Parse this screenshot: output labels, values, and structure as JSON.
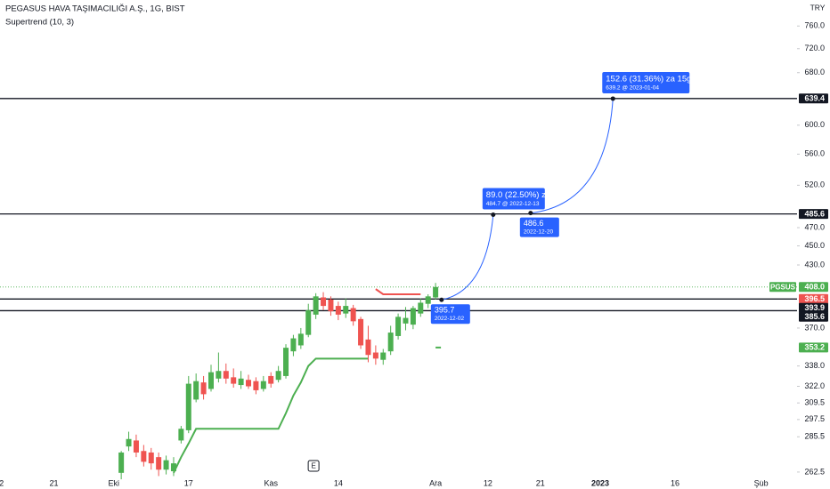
{
  "chart_data": {
    "type": "candlestick",
    "title": "PEGASUS HAVA TAŞIMACILIĞI A.Ş., 1G, BIST",
    "currency": "TRY",
    "log_scale": true,
    "grid": false,
    "up_color": "#4caf50",
    "down_color": "#ef5350",
    "ylim": [
      257.5,
      808.6
    ],
    "yticks": [
      262.5,
      285.5,
      297.5,
      309.5,
      {
        "value": 322,
        "label": "322.0"
      },
      {
        "value": 338,
        "label": "338.0"
      },
      {
        "value": 370,
        "label": "370.0"
      },
      {
        "value": 430,
        "label": "430.0"
      },
      {
        "value": 450,
        "label": "450.0"
      },
      {
        "value": 470,
        "label": "470.0"
      },
      {
        "value": 520,
        "label": "520.0"
      },
      {
        "value": 560,
        "label": "560.0"
      },
      {
        "value": 600,
        "label": "600.0"
      },
      {
        "value": 680,
        "label": "680.0"
      },
      {
        "value": 720,
        "label": "720.0"
      },
      {
        "value": 760,
        "label": "760.0"
      }
    ],
    "xlim": [
      -0.2,
      106.3
    ],
    "xticks": [
      {
        "value": 0,
        "label": "2"
      },
      {
        "value": 7,
        "label": "21"
      },
      {
        "value": 15,
        "label": "Eki"
      },
      {
        "value": 25,
        "label": "17"
      },
      {
        "value": 36,
        "label": "Kas"
      },
      {
        "value": 45,
        "label": "14"
      },
      {
        "value": 58,
        "label": "Ara"
      },
      {
        "value": 65,
        "label": "12"
      },
      {
        "value": 72,
        "label": "21"
      },
      {
        "value": 80,
        "label": "2023"
      },
      {
        "value": 90,
        "label": "16"
      },
      {
        "value": 101.5,
        "label": "Şub"
      }
    ],
    "x": [
      16,
      17,
      18,
      19,
      20,
      21,
      22,
      23,
      24,
      25,
      26,
      27,
      28,
      29,
      30,
      31,
      32,
      33,
      34,
      35,
      36,
      37,
      38,
      39,
      40,
      41,
      42,
      43,
      44,
      45,
      46,
      47,
      48,
      49,
      50,
      51,
      52,
      53,
      54,
      55,
      56,
      57,
      58
    ],
    "open": [
      262,
      279,
      283,
      276,
      275,
      272,
      264,
      263,
      283,
      290,
      312,
      325,
      320,
      328,
      334,
      329,
      323,
      327,
      326,
      320,
      330,
      327,
      330,
      350,
      355,
      364,
      382,
      398,
      396,
      390,
      383,
      388,
      378,
      360,
      349,
      343,
      350,
      363,
      374,
      373,
      383,
      392,
      398
    ],
    "high": [
      276,
      289,
      287,
      280,
      278,
      275,
      273,
      272,
      293,
      330,
      332,
      330,
      339,
      349,
      340,
      336,
      334,
      331,
      329,
      330,
      333,
      338,
      356,
      364,
      370,
      392,
      402,
      403,
      399,
      394,
      397,
      391,
      380,
      372,
      355,
      352,
      372,
      383,
      389,
      390,
      397,
      401,
      412
    ],
    "low": [
      258,
      276,
      272,
      266,
      264,
      260,
      261,
      260,
      281,
      288,
      310,
      312,
      318,
      325,
      324,
      321,
      320,
      320,
      316,
      318,
      321,
      325,
      328,
      346,
      352,
      362,
      378,
      386,
      381,
      377,
      379,
      372,
      352,
      341,
      339,
      339,
      347,
      360,
      368,
      369,
      380,
      388,
      396
    ],
    "close": [
      275,
      284,
      275,
      269,
      268,
      264,
      270,
      268,
      291,
      324,
      326,
      316,
      333,
      334,
      328,
      324,
      328,
      322,
      319,
      326,
      324,
      334,
      353,
      361,
      365,
      386,
      399,
      390,
      385,
      382,
      390,
      376,
      355,
      347,
      344,
      349,
      366,
      380,
      379,
      388,
      393,
      399,
      408
    ],
    "supertrend": {
      "name": "Supertrend (10, 3)",
      "up_color": "#4caf50",
      "down_color": "#ef5350",
      "up": [
        null,
        null,
        null,
        null,
        null,
        null,
        null,
        262,
        272,
        281,
        291,
        291,
        291,
        291,
        291,
        291,
        291,
        291,
        291,
        291,
        291,
        291,
        302,
        315,
        325,
        338,
        344,
        344,
        344,
        344,
        344,
        344,
        344,
        344,
        null,
        null,
        null,
        null,
        null,
        null,
        null,
        null,
        353.2
      ],
      "down": [
        null,
        null,
        null,
        null,
        null,
        null,
        null,
        null,
        null,
        null,
        null,
        null,
        null,
        null,
        null,
        null,
        null,
        null,
        null,
        null,
        null,
        null,
        null,
        null,
        null,
        null,
        null,
        null,
        null,
        null,
        null,
        null,
        null,
        null,
        406,
        401,
        401,
        401,
        401,
        401,
        401,
        null,
        null
      ]
    },
    "last_price": {
      "symbol": "PGSUS",
      "value": 408,
      "label": "408.0",
      "color": "#4caf50"
    },
    "price_tags": [
      {
        "value": 639.4,
        "color": "#131722",
        "line": true
      },
      {
        "value": 485.6,
        "color": "#131722",
        "line": true
      },
      {
        "value": 396.5,
        "color": "#ef5350",
        "line": true
      },
      {
        "value": 393.9,
        "color": "#131722",
        "line": false
      },
      {
        "value": 385.6,
        "color": "#131722",
        "line": true
      },
      {
        "value": 353.2,
        "color": "#4caf50",
        "line": false
      }
    ],
    "projection_color": "#2962ff",
    "points": [
      {
        "x": 58.8,
        "value": 395.7,
        "label": "395.7",
        "date": "2022-12-02"
      },
      {
        "x": 65.7,
        "value": 484.7
      },
      {
        "x": 70.7,
        "value": 486.6,
        "label": "486.6",
        "date": "2022-12-20"
      },
      {
        "x": 81.7,
        "value": 639.2
      }
    ],
    "measures": [
      {
        "text": "89.0 (22.50%) za 11g",
        "detail": "484.7 @ 2022-12-13"
      },
      {
        "text": "152.6 (31.36%) za 15g",
        "detail": "639.2 @ 2023-01-04"
      }
    ],
    "events": [
      {
        "x": 41.7,
        "label": "E"
      }
    ]
  }
}
